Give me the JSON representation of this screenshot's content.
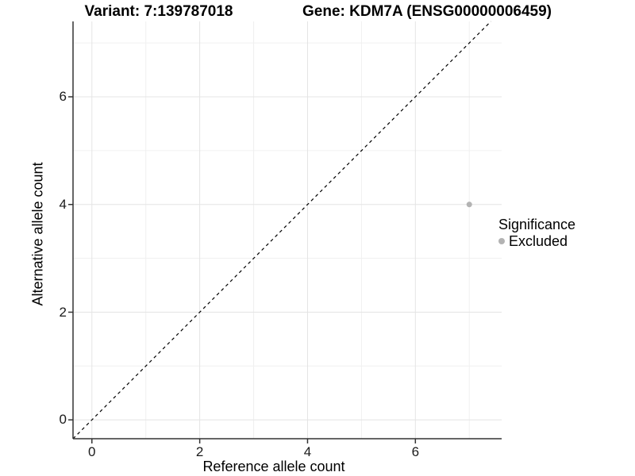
{
  "chart_data": {
    "type": "scatter",
    "title_left": "Variant: 7:139787018",
    "title_right": "Gene: KDM7A (ENSG00000006459)",
    "xlabel": "Reference allele count",
    "ylabel": "Alternative allele count",
    "xlim": [
      -0.35,
      7.6
    ],
    "ylim": [
      -0.35,
      7.4
    ],
    "x_major_ticks": [
      0,
      2,
      4,
      6
    ],
    "y_major_ticks": [
      0,
      2,
      4,
      6
    ],
    "x_minor_ticks": [
      1,
      3,
      5,
      7
    ],
    "y_minor_ticks": [
      1,
      3,
      5,
      7
    ],
    "grid": true,
    "reference_line": {
      "slope": 1,
      "intercept": 0,
      "style": "dashed",
      "color": "#000000"
    },
    "series": [
      {
        "name": "Excluded",
        "color": "#b3b3b3",
        "points": [
          {
            "x": 7,
            "y": 4
          }
        ]
      }
    ],
    "legend": {
      "title": "Significance",
      "position": "right",
      "items": [
        {
          "label": "Excluded",
          "color": "#b3b3b3"
        }
      ]
    },
    "colors": {
      "axis_line": "#333333",
      "grid_major": "#e4e4e4",
      "grid_minor": "#f0f0f0",
      "background": "#ffffff"
    }
  }
}
